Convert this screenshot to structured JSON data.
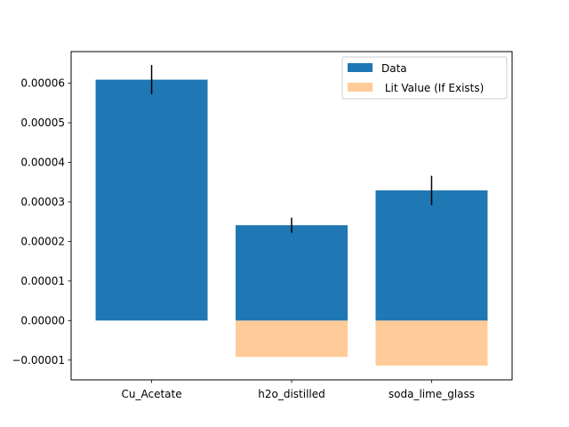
{
  "chart_data": {
    "type": "bar",
    "categories": [
      "Cu_Acetate",
      "h2o_distilled",
      "soda_lime_glass"
    ],
    "series": [
      {
        "name": "Data",
        "values": [
          6.09e-05,
          2.41e-05,
          3.29e-05
        ],
        "errors": [
          3.7e-06,
          1.9e-06,
          3.7e-06
        ],
        "color": "#1f77b4"
      },
      {
        "name": " Lit Value (If Exists)",
        "values": [
          0.0,
          -9.2e-06,
          -1.14e-05
        ],
        "color": "#ffcc99"
      }
    ],
    "ylim": [
      -1.5e-05,
      6.8e-05
    ],
    "yticks": [
      -1e-05,
      0.0,
      1e-05,
      2e-05,
      3e-05,
      4e-05,
      5e-05,
      6e-05
    ],
    "ytick_labels": [
      "−0.00001",
      "0.00000",
      "0.00001",
      "0.00002",
      "0.00003",
      "0.00004",
      "0.00005",
      "0.00006"
    ],
    "grid": false,
    "legend_position": "top-right",
    "title": "",
    "xlabel": "",
    "ylabel": ""
  }
}
